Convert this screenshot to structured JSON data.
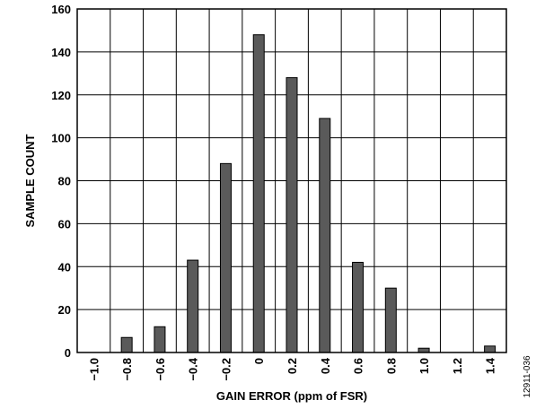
{
  "chart_data": {
    "type": "bar",
    "xlabel": "GAIN ERROR (ppm of FSR)",
    "ylabel": "SAMPLE COUNT",
    "categories": [
      "−1.0",
      "−0.8",
      "−0.6",
      "−0.4",
      "−0.2",
      "0",
      "0.2",
      "0.4",
      "0.6",
      "0.8",
      "1.0",
      "1.2",
      "1.4"
    ],
    "values": [
      0,
      7,
      12,
      43,
      88,
      148,
      128,
      109,
      42,
      30,
      2,
      0,
      3
    ],
    "ylim": [
      0,
      160
    ],
    "yticks": [
      0,
      20,
      40,
      60,
      80,
      100,
      120,
      140,
      160
    ],
    "grid": true,
    "bar_color": "#5a5a5a"
  },
  "figure_code": "12911-036"
}
